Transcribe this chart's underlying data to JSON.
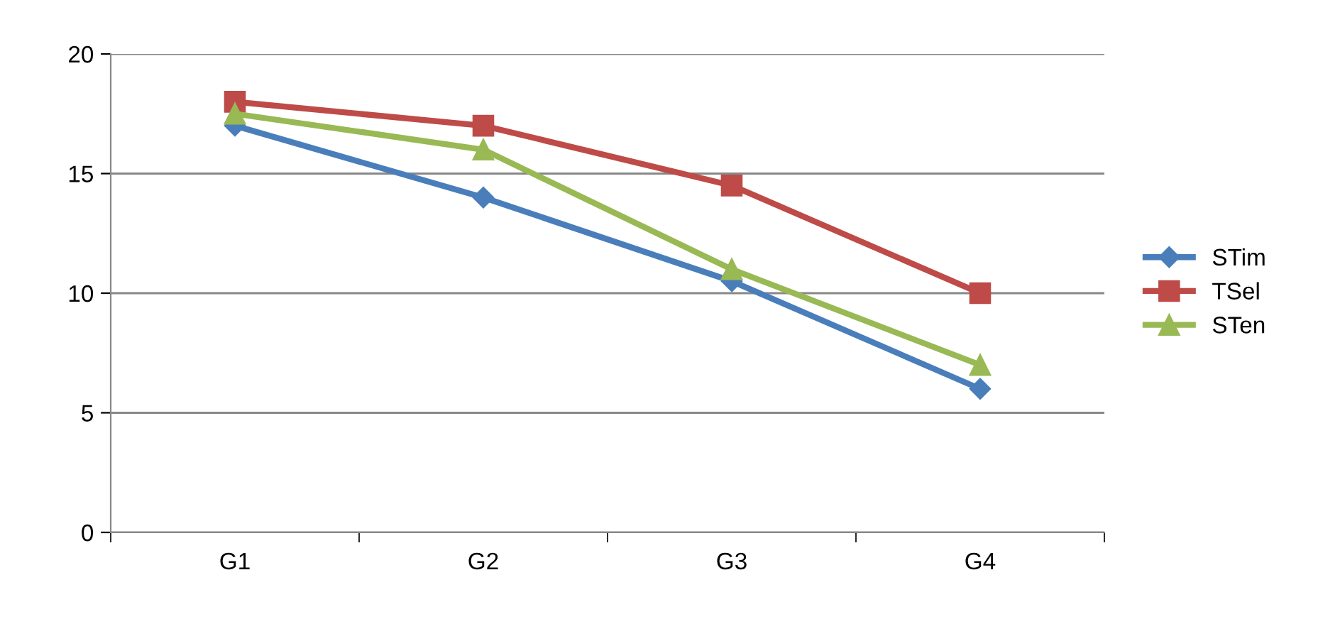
{
  "chart_data": {
    "type": "line",
    "categories": [
      "G1",
      "G2",
      "G3",
      "G4"
    ],
    "series": [
      {
        "name": "STim",
        "color": "#4a7ebb",
        "marker": "diamond",
        "values": [
          17,
          14,
          10.5,
          6
        ]
      },
      {
        "name": "TSel",
        "color": "#be4b48",
        "marker": "square",
        "values": [
          18,
          17,
          14.5,
          10
        ]
      },
      {
        "name": "STen",
        "color": "#98b954",
        "marker": "triangle",
        "values": [
          17.5,
          16,
          11,
          7
        ]
      }
    ],
    "ylim": [
      0,
      20
    ],
    "yticks": [
      0,
      5,
      10,
      15,
      20
    ],
    "grid": "y",
    "legend": "right",
    "line_style": "solid"
  }
}
